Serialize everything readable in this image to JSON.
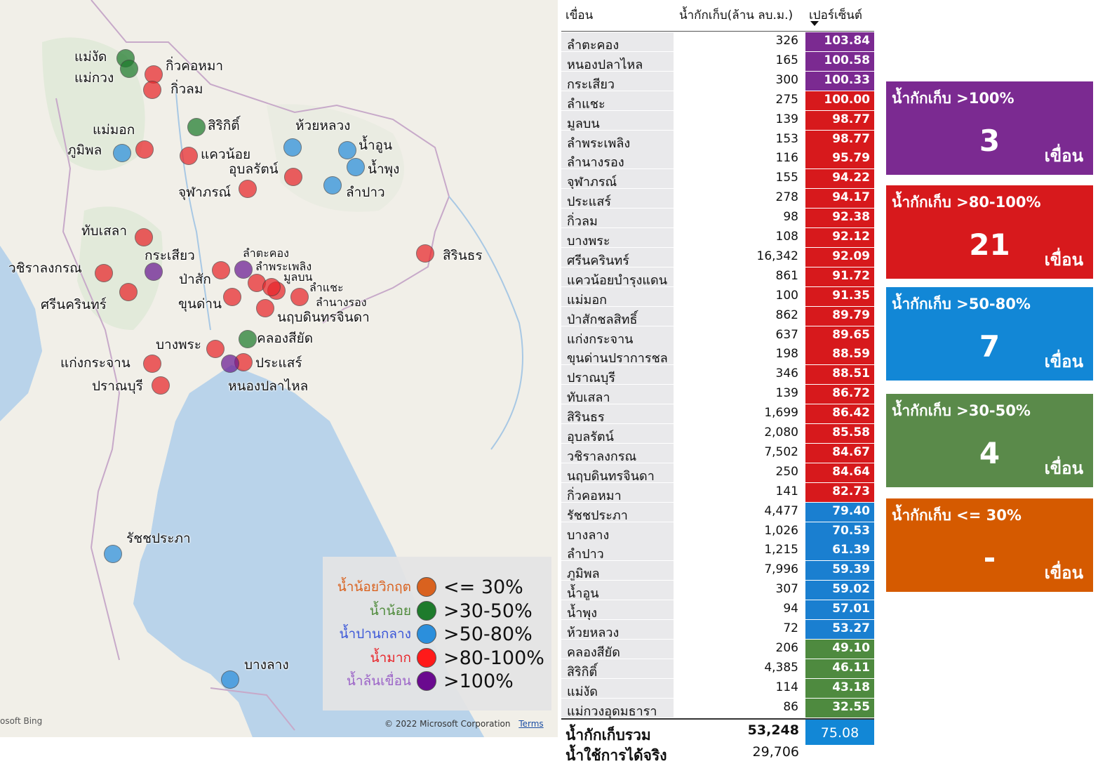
{
  "map": {
    "attribution_left": "osoft Bing",
    "copyright": "© 2022 Microsoft Corporation",
    "terms": "Terms",
    "colors": {
      "critical": "#d9621f",
      "low": "#1e7b2c",
      "medium": "#2b8fdc",
      "high": "#e8252a",
      "overflow": "#6a1a93"
    },
    "dams": [
      {
        "name": "แม่งัด",
        "status": "low"
      },
      {
        "name": "แม่กวง",
        "status": "low"
      },
      {
        "name": "กิ่วคอหมา",
        "status": "high"
      },
      {
        "name": "กิ่วลม",
        "status": "high"
      },
      {
        "name": "สิริกิติ์",
        "status": "low"
      },
      {
        "name": "แม่มอก",
        "status": "high"
      },
      {
        "name": "ภูมิพล",
        "status": "medium"
      },
      {
        "name": "แควน้อย",
        "status": "high"
      },
      {
        "name": "ห้วยหลวง",
        "status": "medium"
      },
      {
        "name": "น้ำอูน",
        "status": "medium"
      },
      {
        "name": "น้ำพุง",
        "status": "medium"
      },
      {
        "name": "อุบลรัตน์",
        "status": "high"
      },
      {
        "name": "จุฬาภรณ์",
        "status": "high"
      },
      {
        "name": "ลำปาว",
        "status": "medium"
      },
      {
        "name": "ทับเสลา",
        "status": "high"
      },
      {
        "name": "กระเสียว",
        "status": "overflow"
      },
      {
        "name": "ลำตะคอง",
        "status": "overflow"
      },
      {
        "name": "ลำพระเพลิง",
        "status": "high"
      },
      {
        "name": "วชิราลงกรณ",
        "status": "high"
      },
      {
        "name": "ป่าสัก",
        "status": "high"
      },
      {
        "name": "มูลบน",
        "status": "high"
      },
      {
        "name": "ลำแชะ",
        "status": "high"
      },
      {
        "name": "ศรีนครินทร์",
        "status": "high"
      },
      {
        "name": "ขุนด่าน",
        "status": "high"
      },
      {
        "name": "ลำนางรอง",
        "status": "high"
      },
      {
        "name": "นฤบดินทรจินดา",
        "status": "high"
      },
      {
        "name": "สิรินธร",
        "status": "high"
      },
      {
        "name": "คลองสียัด",
        "status": "low"
      },
      {
        "name": "บางพระ",
        "status": "high"
      },
      {
        "name": "แก่งกระจาน",
        "status": "high"
      },
      {
        "name": "ประแสร์",
        "status": "high"
      },
      {
        "name": "หนองปลาไหล",
        "status": "overflow"
      },
      {
        "name": "ปราณบุรี",
        "status": "high"
      },
      {
        "name": "รัชชประภา",
        "status": "medium"
      },
      {
        "name": "บางลาง",
        "status": "medium"
      }
    ],
    "legend": [
      {
        "name": "น้ำน้อยวิกฤต",
        "range": "<= 30%",
        "color": "#d9621f",
        "text_color": "#d9621f"
      },
      {
        "name": "น้ำน้อย",
        "range": ">30-50%",
        "color": "#1e7b2c",
        "text_color": "#4e8a3a"
      },
      {
        "name": "น้ำปานกลาง",
        "range": ">50-80%",
        "color": "#2b8fdc",
        "text_color": "#3b57d8"
      },
      {
        "name": "น้ำมาก",
        "range": ">80-100%",
        "color": "#ff1a1a",
        "text_color": "#e8252a"
      },
      {
        "name": "น้ำล้นเขื่อน",
        "range": ">100%",
        "color": "#6a0a8f",
        "text_color": "#9b63c7"
      }
    ]
  },
  "table": {
    "headers": {
      "name": "เขื่อน",
      "capacity": "น้ำกักเก็บ(ล้าน ลบ.ม.)",
      "percent": "เปอร์เซ็นต์"
    },
    "rows": [
      {
        "name": "ลำตะคอง",
        "capacity": "326",
        "percent": "103.84",
        "color": "#7b2a91"
      },
      {
        "name": "หนองปลาไหล",
        "capacity": "165",
        "percent": "100.58",
        "color": "#7b2a91"
      },
      {
        "name": "กระเสียว",
        "capacity": "300",
        "percent": "100.33",
        "color": "#7b2a91"
      },
      {
        "name": "ลำแชะ",
        "capacity": "275",
        "percent": "100.00",
        "color": "#d7191c"
      },
      {
        "name": "มูลบน",
        "capacity": "139",
        "percent": "98.77",
        "color": "#d7191c"
      },
      {
        "name": "ลำพระเพลิง",
        "capacity": "153",
        "percent": "98.77",
        "color": "#d7191c"
      },
      {
        "name": "ลำนางรอง",
        "capacity": "116",
        "percent": "95.79",
        "color": "#d7191c"
      },
      {
        "name": "จุฬาภรณ์",
        "capacity": "155",
        "percent": "94.22",
        "color": "#d7191c"
      },
      {
        "name": "ประแสร์",
        "capacity": "278",
        "percent": "94.17",
        "color": "#d7191c"
      },
      {
        "name": "กิ่วลม",
        "capacity": "98",
        "percent": "92.38",
        "color": "#d7191c"
      },
      {
        "name": "บางพระ",
        "capacity": "108",
        "percent": "92.12",
        "color": "#d7191c"
      },
      {
        "name": "ศรีนครินทร์",
        "capacity": "16,342",
        "percent": "92.09",
        "color": "#d7191c"
      },
      {
        "name": "แควน้อยบำรุงแดน",
        "capacity": "861",
        "percent": "91.72",
        "color": "#d7191c"
      },
      {
        "name": "แม่มอก",
        "capacity": "100",
        "percent": "91.35",
        "color": "#d7191c"
      },
      {
        "name": "ป่าสักชลสิทธิ์",
        "capacity": "862",
        "percent": "89.79",
        "color": "#d7191c"
      },
      {
        "name": "แก่งกระจาน",
        "capacity": "637",
        "percent": "89.65",
        "color": "#d7191c"
      },
      {
        "name": "ขุนด่านปราการชล",
        "capacity": "198",
        "percent": "88.59",
        "color": "#d7191c"
      },
      {
        "name": "ปราณบุรี",
        "capacity": "346",
        "percent": "88.51",
        "color": "#d7191c"
      },
      {
        "name": "ทับเสลา",
        "capacity": "139",
        "percent": "86.72",
        "color": "#d7191c"
      },
      {
        "name": "สิรินธร",
        "capacity": "1,699",
        "percent": "86.42",
        "color": "#d7191c"
      },
      {
        "name": "อุบลรัตน์",
        "capacity": "2,080",
        "percent": "85.58",
        "color": "#d7191c"
      },
      {
        "name": "วชิราลงกรณ",
        "capacity": "7,502",
        "percent": "84.67",
        "color": "#d7191c"
      },
      {
        "name": "นฤบดินทรจินดา",
        "capacity": "250",
        "percent": "84.64",
        "color": "#d7191c"
      },
      {
        "name": "กิ่วคอหมา",
        "capacity": "141",
        "percent": "82.73",
        "color": "#d7191c"
      },
      {
        "name": "รัชชประภา",
        "capacity": "4,477",
        "percent": "79.40",
        "color": "#1a7fd0"
      },
      {
        "name": "บางลาง",
        "capacity": "1,026",
        "percent": "70.53",
        "color": "#1a7fd0"
      },
      {
        "name": "ลำปาว",
        "capacity": "1,215",
        "percent": "61.39",
        "color": "#1a7fd0"
      },
      {
        "name": "ภูมิพล",
        "capacity": "7,996",
        "percent": "59.39",
        "color": "#1a7fd0"
      },
      {
        "name": "น้ำอูน",
        "capacity": "307",
        "percent": "59.02",
        "color": "#1a7fd0"
      },
      {
        "name": "น้ำพุง",
        "capacity": "94",
        "percent": "57.01",
        "color": "#1a7fd0"
      },
      {
        "name": "ห้วยหลวง",
        "capacity": "72",
        "percent": "53.27",
        "color": "#1a7fd0"
      },
      {
        "name": "คลองสียัด",
        "capacity": "206",
        "percent": "49.10",
        "color": "#4e8a3f"
      },
      {
        "name": "สิริกิติ์",
        "capacity": "4,385",
        "percent": "46.11",
        "color": "#4e8a3f"
      },
      {
        "name": "แม่งัด",
        "capacity": "114",
        "percent": "43.18",
        "color": "#4e8a3f"
      },
      {
        "name": "แม่กวงอุดมธารา",
        "capacity": "86",
        "percent": "32.55",
        "color": "#4e8a3f"
      }
    ],
    "total_label": "น้ำกักเก็บรวม",
    "total_capacity": "53,248",
    "total_percent": "75.08",
    "usable_label": "น้ำใช้การได้จริง",
    "usable_capacity": "29,706"
  },
  "cards": [
    {
      "title": "น้ำกักเก็บ >100%",
      "value": "3",
      "unit": "เขื่อน",
      "color": "#7b2a91"
    },
    {
      "title": "น้ำกักเก็บ >80-100%",
      "value": "21",
      "unit": "เขื่อน",
      "color": "#d7191c"
    },
    {
      "title": "น้ำกักเก็บ >50-80%",
      "value": "7",
      "unit": "เขื่อน",
      "color": "#1287d6"
    },
    {
      "title": "น้ำกักเก็บ >30-50%",
      "value": "4",
      "unit": "เขื่อน",
      "color": "#5a8a4a"
    },
    {
      "title": "น้ำกักเก็บ <= 30%",
      "value": "-",
      "unit": "เขื่อน",
      "color": "#d55a00"
    }
  ]
}
